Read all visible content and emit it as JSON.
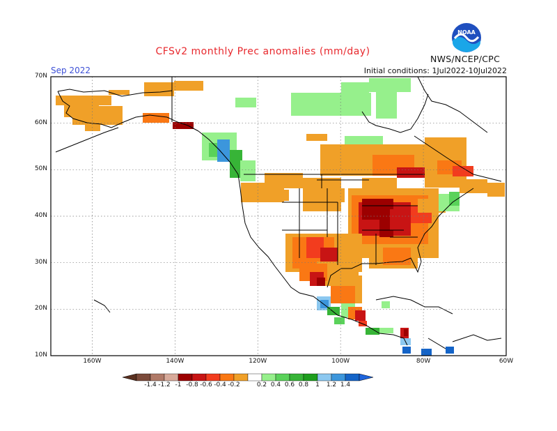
{
  "header": {
    "title": "CFSv2 monthly Prec anomalies (mm/day)",
    "agency": "NWS/NCEP/CPC",
    "logo_text": "NOAA",
    "month": "Sep 2022",
    "initial_conditions": "Initial conditions: 1Jul2022-10Jul2022"
  },
  "axes": {
    "lat_labels": [
      "70N",
      "60N",
      "50N",
      "40N",
      "30N",
      "20N",
      "10N"
    ],
    "lon_labels": [
      "160W",
      "140W",
      "120W",
      "100W",
      "80W",
      "60W"
    ],
    "lat_range": [
      10,
      70
    ],
    "lon_range": [
      -170,
      -60
    ]
  },
  "colorbar": {
    "labels": [
      "-1.4",
      "-1.2",
      "-1",
      "-0.8",
      "-0.6",
      "-0.4",
      "-0.2",
      "0.2",
      "0.4",
      "0.6",
      "0.8",
      "1",
      "1.2",
      "1.4"
    ],
    "colors": [
      "#7b4a3a",
      "#b07a68",
      "#d8aa9a",
      "#9c0000",
      "#c81414",
      "#f23c1e",
      "#fa7814",
      "#f0a028",
      "#ffffff",
      "#96f08c",
      "#5ad25a",
      "#37b437",
      "#1e9e1e",
      "#8cc8f0",
      "#3c96dc",
      "#1464c8"
    ]
  },
  "colors": {
    "title": "#e8282d",
    "month": "#3c4fd6"
  }
}
